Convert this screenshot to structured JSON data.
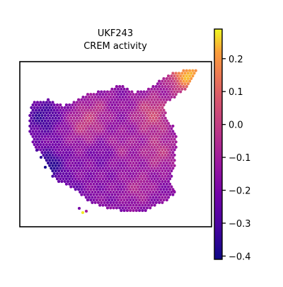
{
  "chart_data": {
    "type": "heatmap",
    "title_lines": [
      "UKF243",
      "CREM activity"
    ],
    "xlabel": "",
    "ylabel": "",
    "grid": false,
    "colormap": "plasma",
    "colorbar": {
      "vmin": -0.41,
      "vmax": 0.29,
      "ticks": [
        -0.4,
        -0.3,
        -0.2,
        -0.1,
        0.0,
        0.1,
        0.2
      ],
      "tick_labels": [
        "−0.4",
        "−0.3",
        "−0.2",
        "−0.1",
        "0.0",
        "0.1",
        "0.2"
      ]
    },
    "spot_pattern": {
      "description_values": "spatial spot activity; approximate per-region values",
      "hotspots": [
        {
          "region": "upper-right tip",
          "value": 0.25
        },
        {
          "region": "center-right",
          "value": 0.05
        },
        {
          "region": "upper-left center",
          "value": -0.05
        },
        {
          "region": "center",
          "value": 0.0
        }
      ],
      "coldspots": [
        {
          "region": "left edge",
          "value": -0.3
        },
        {
          "region": "lower-left",
          "value": -0.38
        },
        {
          "region": "center trough",
          "value": -0.25
        }
      ]
    }
  }
}
